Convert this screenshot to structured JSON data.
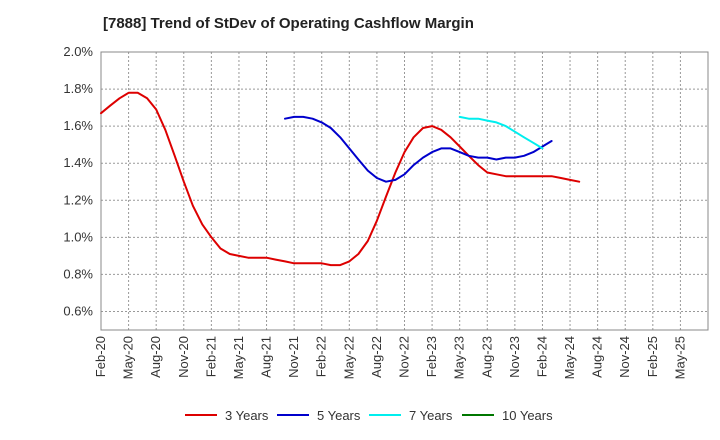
{
  "chart_data": {
    "type": "line",
    "title": "[7888]  Trend of StDev of Operating Cashflow Margin",
    "xlabel": "",
    "ylabel": "",
    "ylim": [
      0.5,
      2.0
    ],
    "yticks": [
      "0.6%",
      "0.8%",
      "1.0%",
      "1.2%",
      "1.4%",
      "1.6%",
      "1.8%",
      "2.0%"
    ],
    "ytick_values": [
      0.6,
      0.8,
      1.0,
      1.2,
      1.4,
      1.6,
      1.8,
      2.0
    ],
    "categories": [
      "Feb-20",
      "May-20",
      "Aug-20",
      "Nov-20",
      "Feb-21",
      "May-21",
      "Aug-21",
      "Nov-21",
      "Feb-22",
      "May-22",
      "Aug-22",
      "Nov-22",
      "Feb-23",
      "May-23",
      "Aug-23",
      "Nov-23",
      "Feb-24",
      "May-24",
      "Aug-24",
      "Nov-24",
      "Feb-25",
      "May-25"
    ],
    "grid": true,
    "legend_position": "bottom",
    "series": [
      {
        "name": "3 Years",
        "color": "#dd0000",
        "points": [
          [
            0,
            1.67
          ],
          [
            0.33,
            1.71
          ],
          [
            0.67,
            1.75
          ],
          [
            1,
            1.78
          ],
          [
            1.33,
            1.78
          ],
          [
            1.67,
            1.75
          ],
          [
            2,
            1.69
          ],
          [
            2.33,
            1.58
          ],
          [
            2.67,
            1.44
          ],
          [
            3,
            1.3
          ],
          [
            3.33,
            1.17
          ],
          [
            3.67,
            1.07
          ],
          [
            4,
            1.0
          ],
          [
            4.33,
            0.94
          ],
          [
            4.67,
            0.91
          ],
          [
            5,
            0.9
          ],
          [
            5.33,
            0.89
          ],
          [
            5.67,
            0.89
          ],
          [
            6,
            0.89
          ],
          [
            6.33,
            0.88
          ],
          [
            6.67,
            0.87
          ],
          [
            7,
            0.86
          ],
          [
            7.33,
            0.86
          ],
          [
            7.67,
            0.86
          ],
          [
            8,
            0.86
          ],
          [
            8.33,
            0.85
          ],
          [
            8.67,
            0.85
          ],
          [
            9,
            0.87
          ],
          [
            9.33,
            0.91
          ],
          [
            9.67,
            0.98
          ],
          [
            10,
            1.09
          ],
          [
            10.33,
            1.22
          ],
          [
            10.67,
            1.35
          ],
          [
            11,
            1.46
          ],
          [
            11.33,
            1.54
          ],
          [
            11.67,
            1.59
          ],
          [
            12,
            1.6
          ],
          [
            12.33,
            1.58
          ],
          [
            12.67,
            1.54
          ],
          [
            13,
            1.49
          ],
          [
            13.33,
            1.44
          ],
          [
            13.67,
            1.39
          ],
          [
            14,
            1.35
          ],
          [
            14.33,
            1.34
          ],
          [
            14.67,
            1.33
          ],
          [
            15,
            1.33
          ],
          [
            15.33,
            1.33
          ],
          [
            15.67,
            1.33
          ],
          [
            16,
            1.33
          ],
          [
            16.33,
            1.33
          ],
          [
            16.67,
            1.32
          ],
          [
            17,
            1.31
          ],
          [
            17.33,
            1.3
          ]
        ]
      },
      {
        "name": "5 Years",
        "color": "#0000cc",
        "points": [
          [
            6.67,
            1.64
          ],
          [
            7,
            1.65
          ],
          [
            7.33,
            1.65
          ],
          [
            7.67,
            1.64
          ],
          [
            8,
            1.62
          ],
          [
            8.33,
            1.59
          ],
          [
            8.67,
            1.54
          ],
          [
            9,
            1.48
          ],
          [
            9.33,
            1.42
          ],
          [
            9.67,
            1.36
          ],
          [
            10,
            1.32
          ],
          [
            10.33,
            1.3
          ],
          [
            10.67,
            1.31
          ],
          [
            11,
            1.34
          ],
          [
            11.33,
            1.39
          ],
          [
            11.67,
            1.43
          ],
          [
            12,
            1.46
          ],
          [
            12.33,
            1.48
          ],
          [
            12.67,
            1.48
          ],
          [
            13,
            1.46
          ],
          [
            13.33,
            1.44
          ],
          [
            13.67,
            1.43
          ],
          [
            14,
            1.43
          ],
          [
            14.33,
            1.42
          ],
          [
            14.67,
            1.43
          ],
          [
            15,
            1.43
          ],
          [
            15.33,
            1.44
          ],
          [
            15.67,
            1.46
          ],
          [
            16,
            1.49
          ],
          [
            16.33,
            1.52
          ]
        ]
      },
      {
        "name": "7 Years",
        "color": "#00eeee",
        "points": [
          [
            13,
            1.65
          ],
          [
            13.33,
            1.64
          ],
          [
            13.67,
            1.64
          ],
          [
            14,
            1.63
          ],
          [
            14.33,
            1.62
          ],
          [
            14.67,
            1.6
          ],
          [
            15,
            1.57
          ],
          [
            15.33,
            1.54
          ],
          [
            15.67,
            1.51
          ],
          [
            16,
            1.48
          ]
        ]
      },
      {
        "name": "10 Years",
        "color": "#007700",
        "points": []
      }
    ]
  }
}
